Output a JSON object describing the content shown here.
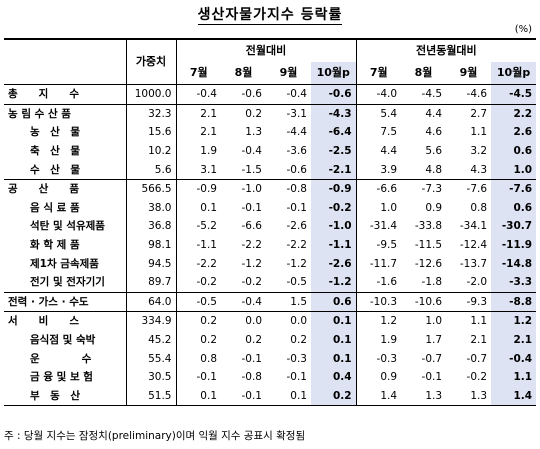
{
  "title": "생산자물가지수 등락률",
  "unit": "(%)",
  "header": {
    "weight": "가중치",
    "mom": "전월대비",
    "yoy": "전년동월대비",
    "months": [
      "7월",
      "8월",
      "9월",
      "10월p"
    ]
  },
  "rows": [
    {
      "name": "총　　지　　수",
      "weight": "1000.0",
      "mom": [
        "-0.4",
        "-0.6",
        "-0.4",
        "-0.6"
      ],
      "yoy": [
        "-4.0",
        "-4.5",
        "-4.6",
        "-4.5"
      ],
      "level": 0,
      "top": true
    },
    {
      "name": "농 림 수 산 품",
      "weight": "32.3",
      "mom": [
        "2.1",
        "0.2",
        "-3.1",
        "-4.3"
      ],
      "yoy": [
        "5.4",
        "4.4",
        "2.7",
        "2.2"
      ],
      "level": 0,
      "top": true
    },
    {
      "name": "농　산　물",
      "weight": "15.6",
      "mom": [
        "2.1",
        "1.3",
        "-4.4",
        "-6.4"
      ],
      "yoy": [
        "7.5",
        "4.6",
        "1.1",
        "2.6"
      ],
      "level": 1
    },
    {
      "name": "축　산　물",
      "weight": "10.2",
      "mom": [
        "1.9",
        "-0.4",
        "-3.6",
        "-2.5"
      ],
      "yoy": [
        "4.4",
        "5.6",
        "3.2",
        "0.6"
      ],
      "level": 1
    },
    {
      "name": "수　산　물",
      "weight": "5.6",
      "mom": [
        "3.1",
        "-1.5",
        "-0.6",
        "-2.1"
      ],
      "yoy": [
        "3.9",
        "4.8",
        "4.3",
        "1.0"
      ],
      "level": 1
    },
    {
      "name": "공　　산　　품",
      "weight": "566.5",
      "mom": [
        "-0.9",
        "-1.0",
        "-0.8",
        "-0.9"
      ],
      "yoy": [
        "-6.6",
        "-7.3",
        "-7.6",
        "-7.6"
      ],
      "level": 0,
      "top": true
    },
    {
      "name": "음 식 료 품",
      "weight": "38.0",
      "mom": [
        "0.1",
        "-0.1",
        "-0.1",
        "-0.2"
      ],
      "yoy": [
        "1.0",
        "0.9",
        "0.8",
        "0.6"
      ],
      "level": 1
    },
    {
      "name": "석탄 및 석유제품",
      "weight": "36.8",
      "mom": [
        "-5.2",
        "-6.6",
        "-2.6",
        "-1.0"
      ],
      "yoy": [
        "-31.4",
        "-33.8",
        "-34.1",
        "-30.7"
      ],
      "level": 1
    },
    {
      "name": "화 학 제 품",
      "weight": "98.1",
      "mom": [
        "-1.1",
        "-2.2",
        "-2.2",
        "-1.1"
      ],
      "yoy": [
        "-9.5",
        "-11.5",
        "-12.4",
        "-11.9"
      ],
      "level": 1
    },
    {
      "name": "제1차 금속제품",
      "weight": "94.5",
      "mom": [
        "-2.2",
        "-1.2",
        "-1.2",
        "-2.6"
      ],
      "yoy": [
        "-11.7",
        "-12.6",
        "-13.7",
        "-14.8"
      ],
      "level": 1
    },
    {
      "name": "전기 및 전자기기",
      "weight": "89.7",
      "mom": [
        "-0.2",
        "-0.2",
        "-0.5",
        "-1.2"
      ],
      "yoy": [
        "-1.6",
        "-1.8",
        "-2.0",
        "-3.3"
      ],
      "level": 1
    },
    {
      "name": "전력 · 가스 · 수도",
      "weight": "64.0",
      "mom": [
        "-0.5",
        "-0.4",
        "1.5",
        "0.6"
      ],
      "yoy": [
        "-10.3",
        "-10.6",
        "-9.3",
        "-8.8"
      ],
      "level": 0,
      "top": true
    },
    {
      "name": "서　　비　　스",
      "weight": "334.9",
      "mom": [
        "0.2",
        "0.0",
        "0.0",
        "0.1"
      ],
      "yoy": [
        "1.2",
        "1.0",
        "1.1",
        "1.2"
      ],
      "level": 0,
      "top": true
    },
    {
      "name": "음식점 및 숙박",
      "weight": "45.2",
      "mom": [
        "0.2",
        "0.2",
        "0.2",
        "0.1"
      ],
      "yoy": [
        "1.9",
        "1.7",
        "2.1",
        "2.1"
      ],
      "level": 1
    },
    {
      "name": "운　　　　수",
      "weight": "55.4",
      "mom": [
        "0.8",
        "-0.1",
        "-0.3",
        "0.1"
      ],
      "yoy": [
        "-0.3",
        "-0.7",
        "-0.7",
        "-0.4"
      ],
      "level": 1
    },
    {
      "name": "금 융 및 보 험",
      "weight": "30.5",
      "mom": [
        "-0.1",
        "-0.8",
        "-0.1",
        "0.4"
      ],
      "yoy": [
        "0.9",
        "-0.1",
        "-0.2",
        "1.1"
      ],
      "level": 1
    },
    {
      "name": "부　동　산",
      "weight": "51.5",
      "mom": [
        "0.1",
        "-0.1",
        "0.1",
        "0.2"
      ],
      "yoy": [
        "1.4",
        "1.3",
        "1.3",
        "1.4"
      ],
      "level": 1,
      "last": true
    }
  ],
  "footnote": "주 : 당월 지수는 잠정치(preliminary)이며 익월 지수 공표시 확정됨",
  "colors": {
    "highlight": "#dde3f2"
  }
}
